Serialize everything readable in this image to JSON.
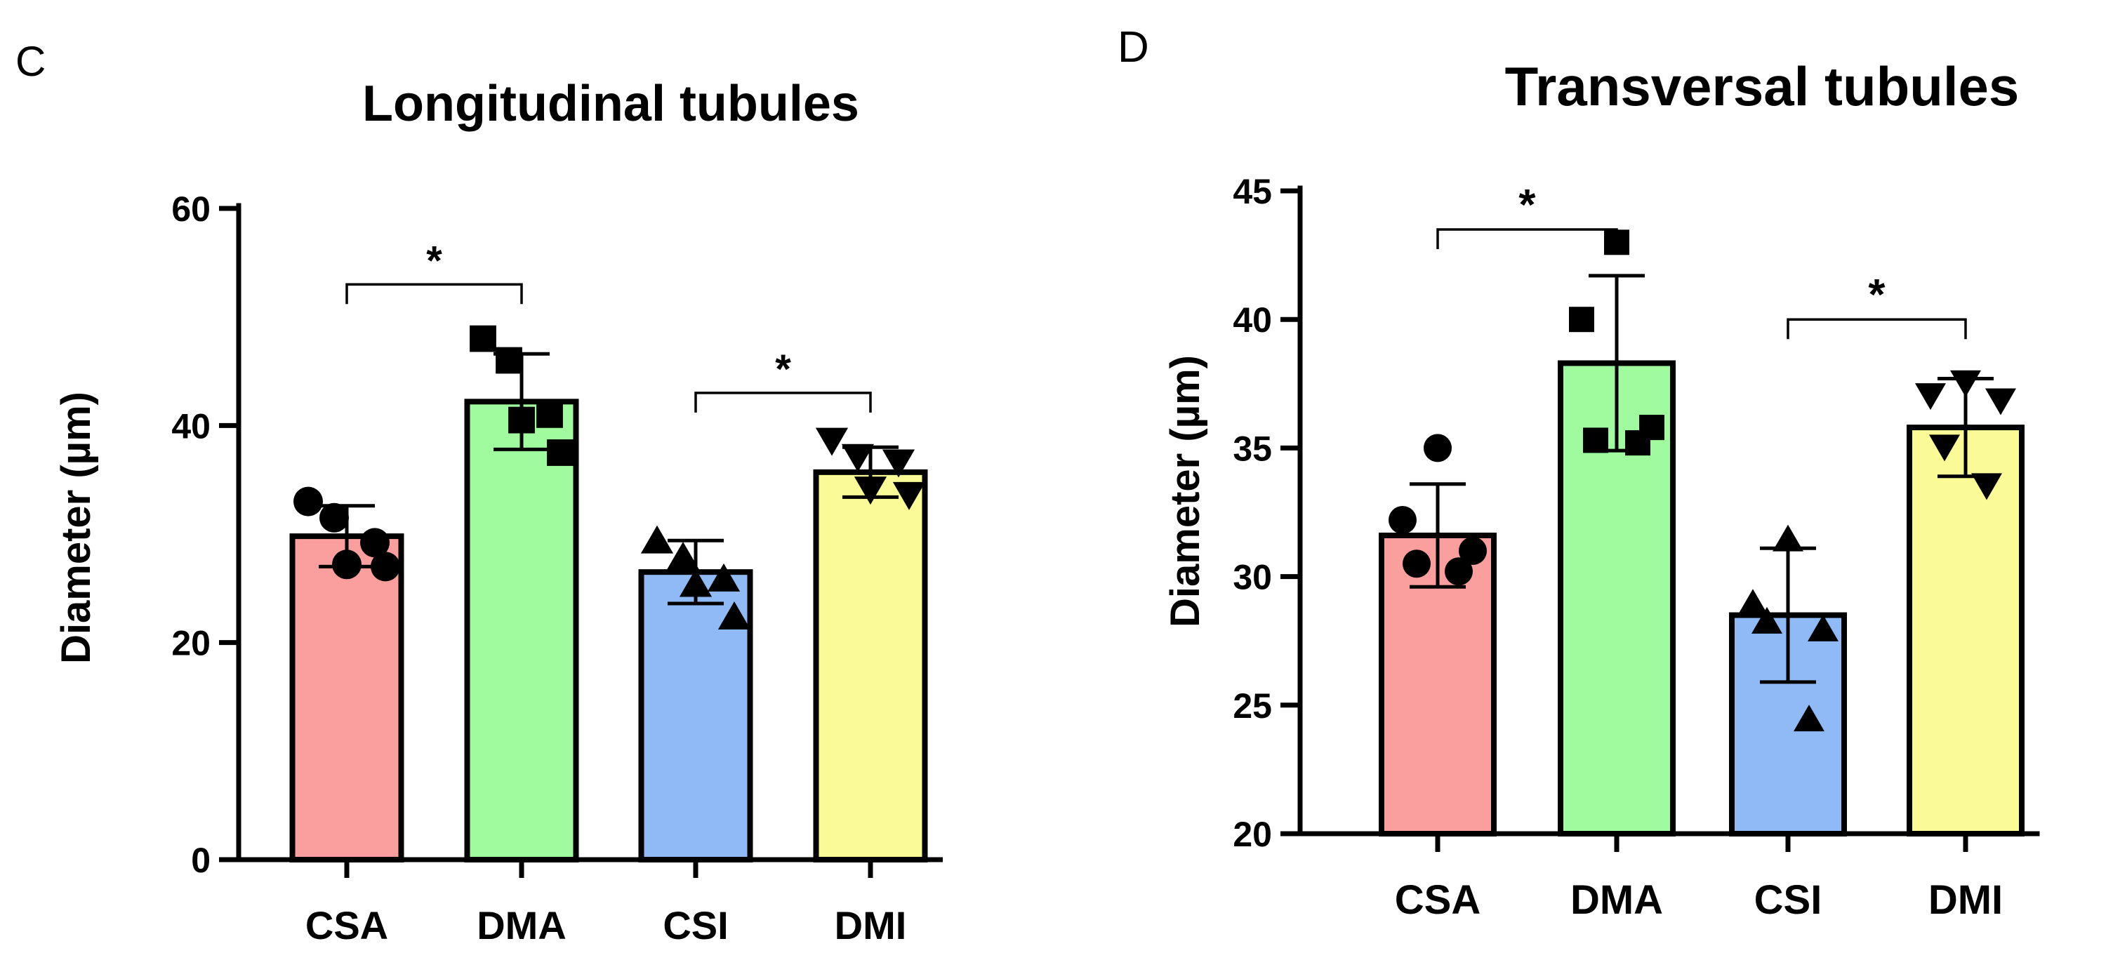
{
  "colors": {
    "CSA": "#fa9e9e",
    "DMA": "#a0fa9e",
    "CSI": "#8fbaf5",
    "DMI": "#fafa96"
  },
  "chart_data": [
    {
      "panel_letter": "C",
      "type": "bar",
      "title": "Longitudinal tubules",
      "xlabel": "",
      "ylabel": "Diameter (µm)",
      "ylim": [
        0,
        60
      ],
      "yticks": [
        0,
        20,
        40,
        60
      ],
      "categories": [
        "CSA",
        "DMA",
        "CSI",
        "DMI"
      ],
      "values": [
        29.8,
        42.2,
        26.5,
        35.7
      ],
      "error_sd": [
        2.8,
        4.4,
        2.9,
        2.3
      ],
      "markers": [
        "circle",
        "square",
        "triangle-up",
        "triangle-down"
      ],
      "points": [
        [
          33.0,
          31.5,
          29.2,
          27.2,
          27.0
        ],
        [
          48.0,
          46.0,
          41.0,
          40.5,
          37.5
        ],
        [
          29.5,
          28.0,
          26.0,
          25.5,
          22.5
        ],
        [
          38.5,
          37.0,
          36.5,
          34.0,
          33.5
        ]
      ],
      "significance": [
        {
          "from": "CSA",
          "to": "DMA",
          "label": "*",
          "y": 53
        },
        {
          "from": "CSI",
          "to": "DMI",
          "label": "*",
          "y": 43
        }
      ]
    },
    {
      "panel_letter": "D",
      "type": "bar",
      "title": "Transversal tubules",
      "xlabel": "",
      "ylabel": "Diameter (µm)",
      "ylim": [
        20,
        45
      ],
      "yticks": [
        20,
        25,
        30,
        35,
        40,
        45
      ],
      "categories": [
        "CSA",
        "DMA",
        "CSI",
        "DMI"
      ],
      "values": [
        31.6,
        38.3,
        28.5,
        35.8
      ],
      "error_sd": [
        2.0,
        3.4,
        2.6,
        1.9
      ],
      "markers": [
        "circle",
        "square",
        "triangle-up",
        "triangle-down"
      ],
      "points": [
        [
          35.0,
          32.2,
          31.0,
          30.5,
          30.2
        ],
        [
          43.0,
          40.0,
          35.8,
          35.3,
          35.2
        ],
        [
          31.5,
          29.0,
          28.0,
          28.3,
          24.5
        ],
        [
          37.5,
          37.0,
          36.8,
          35.0,
          33.5
        ]
      ],
      "significance": [
        {
          "from": "CSA",
          "to": "DMA",
          "label": "*",
          "y": 43.5
        },
        {
          "from": "CSI",
          "to": "DMI",
          "label": "*",
          "y": 40.0
        }
      ]
    }
  ]
}
